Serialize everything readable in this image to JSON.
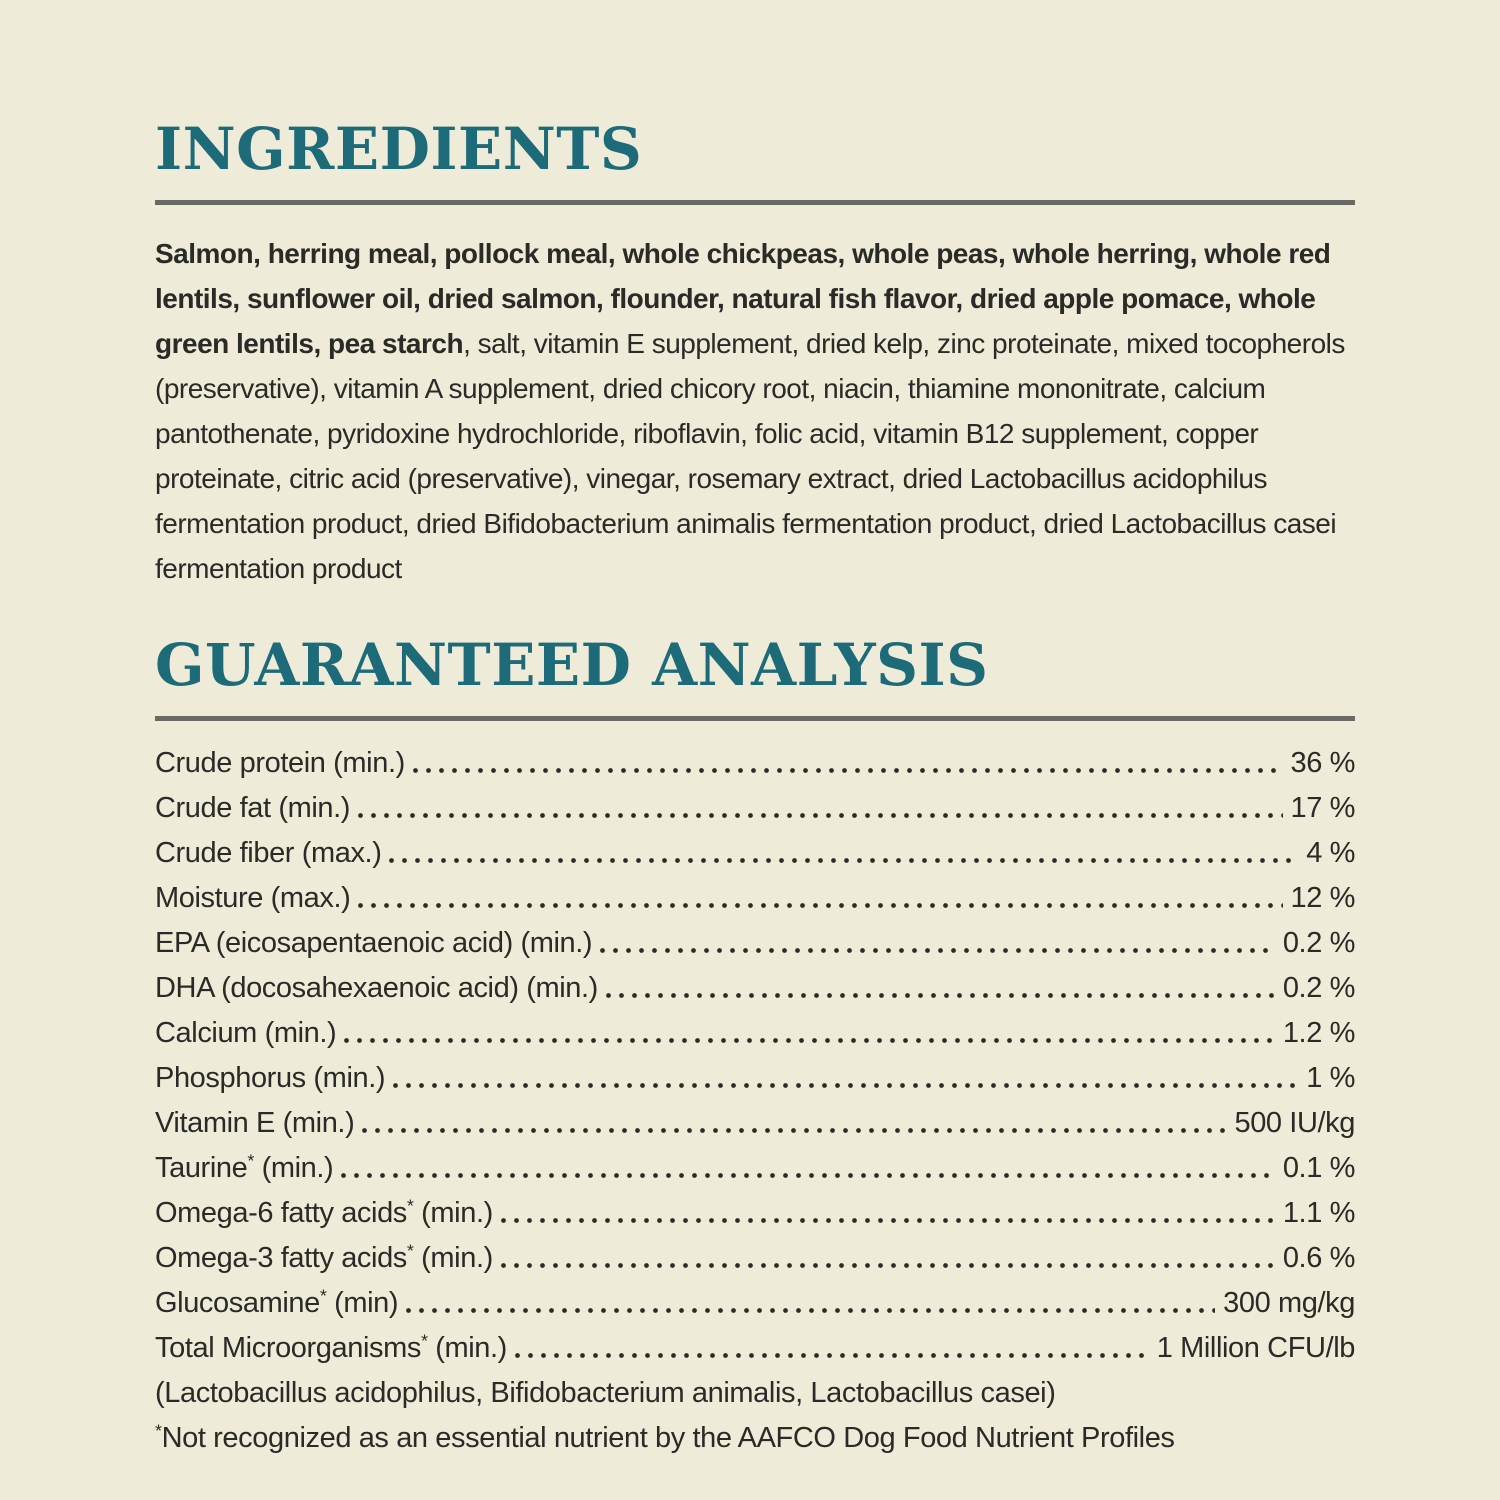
{
  "colors": {
    "background": "#eeebd9",
    "accent_teal": "#1d6a78",
    "rule_gray": "#6a6a64",
    "text": "#2a2a27"
  },
  "ingredients": {
    "title": "INGREDIENTS",
    "bold_text": "Salmon, herring meal, pollock meal, whole chickpeas, whole peas, whole herring, whole red lentils, sunflower oil, dried salmon, flounder, natural fish flavor, dried apple pomace, whole green lentils, pea starch",
    "regular_text": ", salt, vitamin E supplement, dried kelp, zinc proteinate, mixed tocopherols (preservative), vitamin A supplement, dried chicory root, niacin, thiamine mononitrate, calcium pantothenate, pyridoxine hydrochloride, riboflavin, folic acid, vitamin B12 supplement, copper proteinate, citric acid (preservative), vinegar, rosemary extract, dried Lactobacillus acidophilus fermentation product, dried Bifidobacterium animalis fermentation product, dried Lactobacillus casei fermentation product"
  },
  "guaranteed_analysis": {
    "title": "GUARANTEED ANALYSIS",
    "rows": [
      {
        "label": "Crude protein (min.)",
        "value": "36 %"
      },
      {
        "label": "Crude fat (min.)",
        "value": "17 %"
      },
      {
        "label": "Crude fiber (max.)",
        "value": "4 %"
      },
      {
        "label": "Moisture (max.)",
        "value": "12 %"
      },
      {
        "label": "EPA (eicosapentaenoic acid) (min.)",
        "value": "0.2 %"
      },
      {
        "label": "DHA (docosahexaenoic acid) (min.)",
        "value": "0.2 %"
      },
      {
        "label": "Calcium (min.)",
        "value": "1.2 %"
      },
      {
        "label": "Phosphorus (min.)",
        "value": "1 %"
      },
      {
        "label": "Vitamin E (min.)",
        "value": "500 IU/kg"
      },
      {
        "label": "Taurine* (min.)",
        "value": "0.1 %"
      },
      {
        "label": "Omega-6 fatty acids* (min.)",
        "value": "1.1 %"
      },
      {
        "label": "Omega-3 fatty acids* (min.)",
        "value": "0.6 %"
      },
      {
        "label": "Glucosamine* (min)",
        "value": "300 mg/kg"
      },
      {
        "label": "Total Microorganisms* (min.)",
        "value": "1 Million CFU/lb"
      }
    ],
    "organisms_note": "(Lactobacillus acidophilus, Bifidobacterium animalis, Lactobacillus casei)",
    "aafco_marker": "*",
    "aafco_text": "Not recognized as an essential nutrient by the AAFCO Dog Food Nutrient Profiles"
  }
}
